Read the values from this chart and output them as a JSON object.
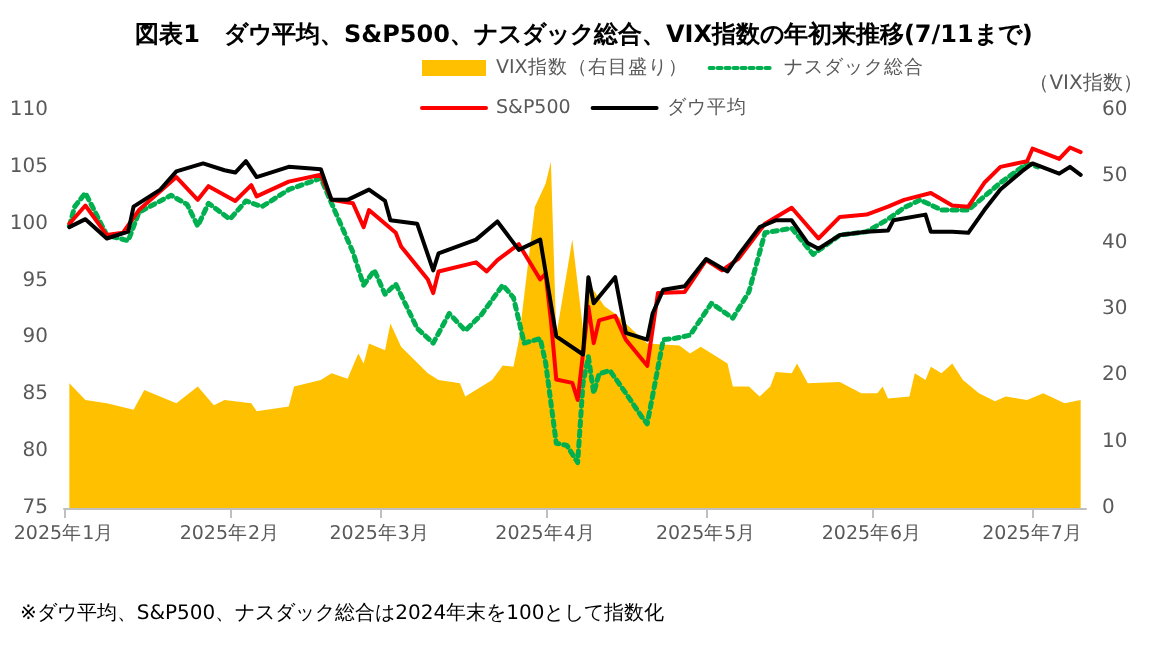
{
  "chart_data": {
    "type": "line",
    "title": "図表1　ダウ平均、S&P500、ナスダック総合、VIX指数の年初来推移(7/11まで)",
    "y2label": "（VIX指数）",
    "annotations": [
      "※ダウ平均、S&P500、ナスダック総合は2024年末を100として指数化"
    ],
    "xlim": [
      "2025-01-01",
      "2025-07-11"
    ],
    "xticks": [
      {
        "value": "2025-01-01",
        "label": "2025年1月"
      },
      {
        "value": "2025-02-01",
        "label": "2025年2月"
      },
      {
        "value": "2025-03-01",
        "label": "2025年3月"
      },
      {
        "value": "2025-04-01",
        "label": "2025年4月"
      },
      {
        "value": "2025-05-01",
        "label": "2025年5月"
      },
      {
        "value": "2025-06-01",
        "label": "2025年6月"
      },
      {
        "value": "2025-07-01",
        "label": "2025年7月"
      }
    ],
    "ylim": [
      75,
      110
    ],
    "yticks": [
      75,
      80,
      85,
      90,
      95,
      100,
      105,
      110
    ],
    "y2lim": [
      0,
      60
    ],
    "y2ticks": [
      0,
      10,
      20,
      30,
      40,
      50,
      60
    ],
    "grid": false,
    "legend": "top",
    "marker": "none",
    "series": [
      {
        "name": "VIX指数（右目盛り）",
        "type": "area",
        "axis": "y2",
        "color": "#ffc000",
        "x": [
          "2025-01-02",
          "2025-01-05",
          "2025-01-09",
          "2025-01-14",
          "2025-01-16",
          "2025-01-22",
          "2025-01-26",
          "2025-01-29",
          "2025-01-31",
          "2025-02-05",
          "2025-02-06",
          "2025-02-12",
          "2025-02-13",
          "2025-02-18",
          "2025-02-20",
          "2025-02-23",
          "2025-02-25",
          "2025-02-26",
          "2025-02-27",
          "2025-03-02",
          "2025-03-03",
          "2025-03-05",
          "2025-03-10",
          "2025-03-12",
          "2025-03-16",
          "2025-03-17",
          "2025-03-22",
          "2025-03-24",
          "2025-03-26",
          "2025-03-27",
          "2025-03-30",
          "2025-04-01",
          "2025-04-02",
          "2025-04-03",
          "2025-04-06",
          "2025-04-08",
          "2025-04-09",
          "2025-04-12",
          "2025-04-14",
          "2025-04-20",
          "2025-04-26",
          "2025-04-28",
          "2025-04-30",
          "2025-05-03",
          "2025-05-05",
          "2025-05-06",
          "2025-05-09",
          "2025-05-11",
          "2025-05-13",
          "2025-05-14",
          "2025-05-17",
          "2025-05-18",
          "2025-05-20",
          "2025-05-26",
          "2025-05-30",
          "2025-06-02",
          "2025-06-03",
          "2025-06-04",
          "2025-06-08",
          "2025-06-09",
          "2025-06-11",
          "2025-06-12",
          "2025-06-14",
          "2025-06-16",
          "2025-06-18",
          "2025-06-21",
          "2025-06-24",
          "2025-06-26",
          "2025-06-30",
          "2025-07-03",
          "2025-07-07",
          "2025-07-10"
        ],
        "values": [
          18.8,
          16.3,
          15.8,
          14.8,
          17.8,
          15.8,
          18.3,
          15.5,
          16.3,
          15.8,
          14.6,
          15.3,
          18.3,
          19.3,
          20.3,
          19.5,
          23.3,
          21.8,
          24.8,
          23.8,
          27.8,
          24.3,
          20.3,
          19.3,
          18.8,
          16.8,
          19.3,
          21.5,
          21.3,
          25.3,
          45.4,
          48.9,
          52.2,
          26,
          40.5,
          27,
          34,
          30.4,
          29.3,
          24.8,
          24.5,
          23.3,
          24.3,
          22.8,
          21.8,
          18.3,
          18.3,
          16.8,
          18.3,
          20.5,
          20.3,
          21.8,
          18.8,
          19,
          17.3,
          17.3,
          18.3,
          16.5,
          16.8,
          20.3,
          19.3,
          21.3,
          20.3,
          21.8,
          19.3,
          17.3,
          16.1,
          16.8,
          16.3,
          17.3,
          15.8,
          16.3
        ]
      },
      {
        "name": "ナスダック総合",
        "type": "line",
        "line_style": "dotted",
        "color": "#00b050",
        "x": [
          "2025-01-02",
          "2025-01-03",
          "2025-01-05",
          "2025-01-09",
          "2025-01-13",
          "2025-01-15",
          "2025-01-21",
          "2025-01-24",
          "2025-01-26",
          "2025-01-28",
          "2025-02-01",
          "2025-02-04",
          "2025-02-07",
          "2025-02-12",
          "2025-02-18",
          "2025-02-20",
          "2025-02-24",
          "2025-02-26",
          "2025-02-28",
          "2025-03-02",
          "2025-03-04",
          "2025-03-08",
          "2025-03-11",
          "2025-03-14",
          "2025-03-17",
          "2025-03-20",
          "2025-03-24",
          "2025-03-26",
          "2025-03-28",
          "2025-03-31",
          "2025-04-01",
          "2025-04-03",
          "2025-04-05",
          "2025-04-07",
          "2025-04-08",
          "2025-04-09",
          "2025-04-10",
          "2025-04-11",
          "2025-04-13",
          "2025-04-16",
          "2025-04-19",
          "2025-04-20",
          "2025-04-23",
          "2025-04-25",
          "2025-04-28",
          "2025-05-02",
          "2025-05-06",
          "2025-05-09",
          "2025-05-12",
          "2025-05-17",
          "2025-05-21",
          "2025-05-26",
          "2025-05-31",
          "2025-06-04",
          "2025-06-07",
          "2025-06-10",
          "2025-06-14",
          "2025-06-19",
          "2025-06-22",
          "2025-06-25",
          "2025-06-30",
          "2025-07-02"
        ],
        "values": [
          99.8,
          101.5,
          102.7,
          99,
          98.5,
          101,
          102.5,
          101.7,
          99.8,
          101.8,
          100.4,
          102,
          101.5,
          103,
          104,
          101.8,
          97.5,
          94.6,
          95.9,
          93.8,
          94.7,
          90.8,
          89.5,
          92.1,
          90.6,
          92,
          94.6,
          93.5,
          89.5,
          89.9,
          87.8,
          80.7,
          80.5,
          79,
          86,
          88.3,
          85.1,
          86.8,
          87.1,
          85.1,
          83,
          82.4,
          89.8,
          89.9,
          90.2,
          93,
          91.7,
          94,
          99.2,
          99.6,
          97.3,
          99,
          99.3,
          100.4,
          101.4,
          102.1,
          101.2,
          101.2,
          102.4,
          103.6,
          105.3,
          105
        ]
      },
      {
        "name": "S&P500",
        "type": "line",
        "color": "#ff0000",
        "x": [
          "2025-01-02",
          "2025-01-05",
          "2025-01-09",
          "2025-01-12",
          "2025-01-15",
          "2025-01-22",
          "2025-01-26",
          "2025-01-28",
          "2025-02-02",
          "2025-02-05",
          "2025-02-06",
          "2025-02-12",
          "2025-02-18",
          "2025-02-20",
          "2025-02-24",
          "2025-02-26",
          "2025-02-27",
          "2025-03-04",
          "2025-03-05",
          "2025-03-10",
          "2025-03-11",
          "2025-03-12",
          "2025-03-19",
          "2025-03-21",
          "2025-03-23",
          "2025-03-27",
          "2025-03-31",
          "2025-04-01",
          "2025-04-02",
          "2025-04-03",
          "2025-04-06",
          "2025-04-07",
          "2025-04-09",
          "2025-04-10",
          "2025-04-11",
          "2025-04-14",
          "2025-04-16",
          "2025-04-20",
          "2025-04-22",
          "2025-04-27",
          "2025-05-01",
          "2025-05-04",
          "2025-05-07",
          "2025-05-12",
          "2025-05-17",
          "2025-05-22",
          "2025-05-26",
          "2025-05-31",
          "2025-06-04",
          "2025-06-07",
          "2025-06-12",
          "2025-06-16",
          "2025-06-19",
          "2025-06-22",
          "2025-06-25",
          "2025-06-30",
          "2025-07-01",
          "2025-07-06",
          "2025-07-08",
          "2025-07-10"
        ],
        "values": [
          100,
          101.6,
          99,
          99.2,
          101.2,
          104.1,
          102.1,
          103.3,
          102,
          103.4,
          102.4,
          103.7,
          104.3,
          102.1,
          101.8,
          99.7,
          101.2,
          99.2,
          98,
          95.1,
          93.9,
          95.8,
          96.6,
          95.8,
          96.8,
          98.2,
          95.1,
          95.6,
          91.5,
          86.3,
          86,
          84.5,
          92.7,
          89.5,
          91.5,
          91.9,
          89.8,
          87.5,
          93.9,
          94,
          96.8,
          95.9,
          96.9,
          100,
          101.4,
          98.7,
          100.6,
          100.8,
          101.5,
          102.1,
          102.7,
          101.6,
          101.5,
          103.6,
          105,
          105.5,
          106.6,
          105.7,
          106.7,
          106.3
        ]
      },
      {
        "name": "ダウ平均",
        "type": "line",
        "color": "#000000",
        "x": [
          "2025-01-02",
          "2025-01-05",
          "2025-01-09",
          "2025-01-13",
          "2025-01-14",
          "2025-01-19",
          "2025-01-22",
          "2025-01-27",
          "2025-01-31",
          "2025-02-02",
          "2025-02-04",
          "2025-02-06",
          "2025-02-12",
          "2025-02-18",
          "2025-02-20",
          "2025-02-23",
          "2025-02-27",
          "2025-03-02",
          "2025-03-03",
          "2025-03-08",
          "2025-03-11",
          "2025-03-12",
          "2025-03-19",
          "2025-03-23",
          "2025-03-27",
          "2025-03-31",
          "2025-04-03",
          "2025-04-08",
          "2025-04-09",
          "2025-04-10",
          "2025-04-14",
          "2025-04-16",
          "2025-04-20",
          "2025-04-21",
          "2025-04-23",
          "2025-04-27",
          "2025-05-01",
          "2025-05-05",
          "2025-05-07",
          "2025-05-11",
          "2025-05-14",
          "2025-05-17",
          "2025-05-20",
          "2025-05-22",
          "2025-05-26",
          "2025-05-31",
          "2025-06-04",
          "2025-06-05",
          "2025-06-11",
          "2025-06-12",
          "2025-06-16",
          "2025-06-19",
          "2025-06-22",
          "2025-06-25",
          "2025-06-29",
          "2025-07-01",
          "2025-07-06",
          "2025-07-08",
          "2025-07-10"
        ],
        "values": [
          99.7,
          100.4,
          98.7,
          99.3,
          101.5,
          103,
          104.6,
          105.3,
          104.7,
          104.5,
          105.5,
          104.1,
          105,
          104.8,
          102.1,
          102.1,
          103,
          102,
          100.3,
          100,
          95.9,
          97.4,
          98.6,
          100.2,
          97.7,
          98.6,
          90.1,
          88.5,
          95.3,
          93,
          95.3,
          90.4,
          89.8,
          92.1,
          94.2,
          94.5,
          96.9,
          95.8,
          97.2,
          99.7,
          100.3,
          100.3,
          98.3,
          97.8,
          99,
          99.3,
          99.4,
          100.3,
          100.8,
          99.3,
          99.3,
          99.2,
          101.2,
          103,
          104.6,
          105.3,
          104.4,
          105,
          104.3
        ]
      }
    ]
  }
}
